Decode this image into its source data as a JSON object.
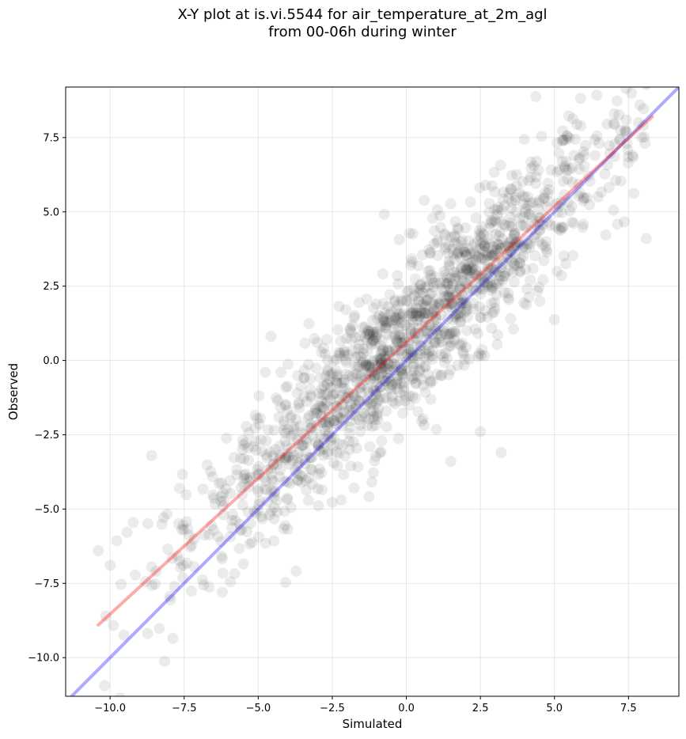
{
  "chart_data": {
    "type": "scatter",
    "title_line1": "X-Y plot at is.vi.5544 for air_temperature_at_2m_agl",
    "title_line2": "from 00-06h during winter",
    "xlabel": "Simulated",
    "ylabel": "Observed",
    "xlim": [
      -11.5,
      9.2
    ],
    "ylim": [
      -11.3,
      9.2
    ],
    "xticks": [
      -10.0,
      -7.5,
      -5.0,
      -2.5,
      0.0,
      2.5,
      5.0,
      7.5
    ],
    "yticks": [
      -10.0,
      -7.5,
      -5.0,
      -2.5,
      0.0,
      2.5,
      5.0,
      7.5
    ],
    "xtick_labels": [
      "−10.0",
      "−7.5",
      "−5.0",
      "−2.5",
      "0.0",
      "2.5",
      "5.0",
      "7.5"
    ],
    "ytick_labels": [
      "−10.0",
      "−7.5",
      "−5.0",
      "−2.5",
      "0.0",
      "2.5",
      "5.0",
      "7.5"
    ],
    "grid": true,
    "marker_color": "#000000",
    "point_cloud": {
      "count": 1500,
      "x_range": [
        -10.4,
        8.3
      ],
      "fit_slope": 0.915,
      "fit_intercept": 0.65,
      "residual_sd": 1.3,
      "note_outliers": [
        {
          "x": -10.4,
          "y": -6.4
        },
        {
          "x": -8.6,
          "y": -3.2
        },
        {
          "x": 8.1,
          "y": 4.1
        },
        {
          "x": 2.5,
          "y": -2.4
        },
        {
          "x": 3.2,
          "y": -3.1
        },
        {
          "x": 1.5,
          "y": -3.4
        }
      ]
    },
    "series": [
      {
        "name": "",
        "kind": "identity",
        "color": "#0000ff",
        "x": [
          -11.5,
          9.2
        ],
        "y": [
          -11.5,
          9.2
        ]
      },
      {
        "name": "",
        "kind": "fit",
        "color": "#ff0000",
        "x": [
          -10.4,
          8.3
        ],
        "y": [
          -8.9,
          8.2
        ]
      }
    ]
  }
}
